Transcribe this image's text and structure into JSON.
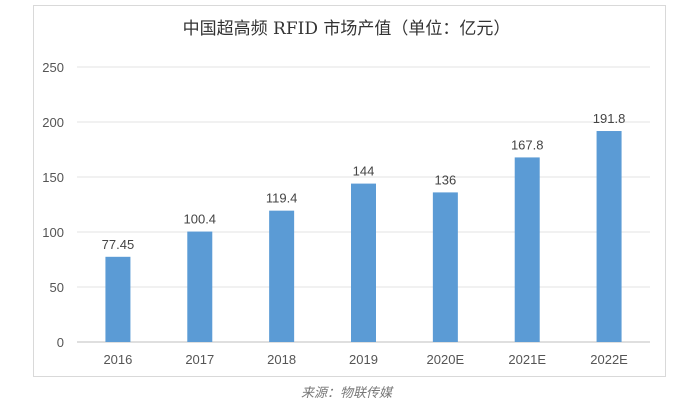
{
  "chart_data": {
    "type": "bar",
    "title": "中国超高频 RFID 市场产值（单位：亿元）",
    "categories": [
      "2016",
      "2017",
      "2018",
      "2019",
      "2020E",
      "2021E",
      "2022E"
    ],
    "values": [
      77.45,
      100.4,
      119.4,
      144,
      136,
      167.8,
      191.8
    ],
    "data_labels": [
      "77.45",
      "100.4",
      "119.4",
      "144",
      "136",
      "167.8",
      "191.8"
    ],
    "ylim": [
      0,
      250
    ],
    "yticks": [
      0,
      50,
      100,
      150,
      200,
      250
    ],
    "grid": true,
    "bar_color": "#5b9bd5",
    "xlabel": "",
    "ylabel": ""
  },
  "source": "来源：物联传媒"
}
